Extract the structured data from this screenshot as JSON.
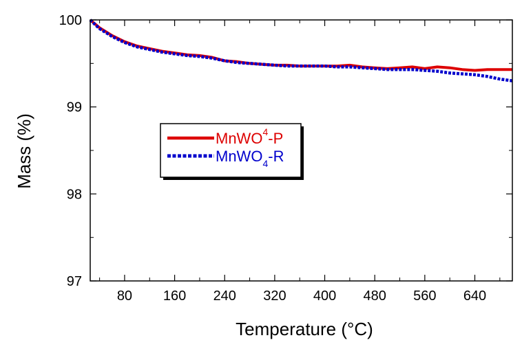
{
  "chart_data": {
    "type": "line",
    "title": "",
    "xlabel": "Temperature (°C)",
    "ylabel": "Mass (%)",
    "xlim": [
      25,
      700
    ],
    "ylim": [
      97,
      100
    ],
    "x_ticks": [
      80,
      160,
      240,
      320,
      400,
      480,
      560,
      640
    ],
    "y_ticks": [
      97,
      98,
      99,
      100
    ],
    "grid": false,
    "legend_position": "center-left",
    "series": [
      {
        "name": "MnWO4-P",
        "legend_parts": [
          "MnWO",
          "4",
          "-P"
        ],
        "color": "#dd0000",
        "style": "solid",
        "x": [
          25,
          40,
          60,
          80,
          100,
          120,
          140,
          160,
          180,
          200,
          220,
          240,
          260,
          280,
          300,
          320,
          340,
          360,
          380,
          400,
          420,
          440,
          460,
          480,
          500,
          520,
          540,
          560,
          580,
          600,
          620,
          640,
          660,
          680,
          700
        ],
        "y": [
          100,
          99.91,
          99.82,
          99.75,
          99.7,
          99.67,
          99.64,
          99.62,
          99.6,
          99.59,
          99.57,
          99.53,
          99.52,
          99.5,
          99.49,
          99.48,
          99.48,
          99.47,
          99.47,
          99.47,
          99.47,
          99.48,
          99.46,
          99.45,
          99.44,
          99.45,
          99.46,
          99.44,
          99.46,
          99.45,
          99.43,
          99.42,
          99.43,
          99.43,
          99.43
        ]
      },
      {
        "name": "MnWO4-R",
        "legend_parts": [
          "MnWO",
          "4",
          "-R"
        ],
        "color": "#0000cc",
        "style": "dotted",
        "x": [
          25,
          40,
          60,
          80,
          100,
          120,
          140,
          160,
          180,
          200,
          220,
          240,
          260,
          280,
          300,
          320,
          340,
          360,
          380,
          400,
          420,
          440,
          460,
          480,
          500,
          520,
          540,
          560,
          580,
          600,
          620,
          640,
          660,
          680,
          700
        ],
        "y": [
          100,
          99.9,
          99.81,
          99.74,
          99.69,
          99.66,
          99.63,
          99.61,
          99.59,
          99.58,
          99.56,
          99.53,
          99.51,
          99.5,
          99.49,
          99.48,
          99.47,
          99.47,
          99.47,
          99.47,
          99.46,
          99.46,
          99.45,
          99.44,
          99.43,
          99.43,
          99.43,
          99.42,
          99.41,
          99.39,
          99.38,
          99.37,
          99.35,
          99.32,
          99.3
        ]
      }
    ]
  }
}
